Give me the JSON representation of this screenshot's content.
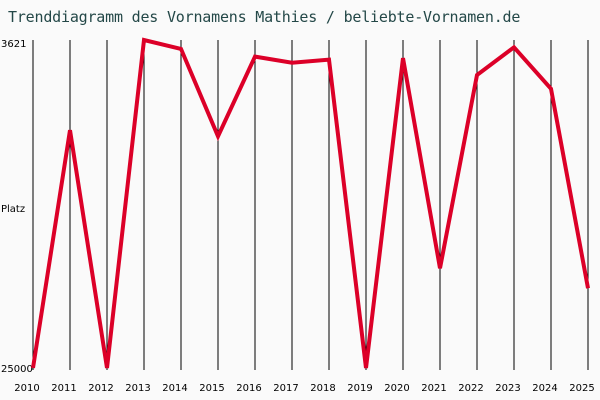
{
  "title": "Trenddiagramm des Vornamens Mathies / beliebte-Vornamen.de",
  "colors": {
    "background": "#fafafa",
    "line": "#dc0028",
    "grid": "#000000",
    "title": "#244848"
  },
  "chart_data": {
    "type": "line",
    "title": "Trenddiagramm des Vornamens Mathies / beliebte-Vornamen.de",
    "xlabel": "",
    "ylabel": "Platz",
    "y_inverted": true,
    "ylim": [
      3621,
      25000
    ],
    "y_tick_labels": [
      "3621",
      "Platz",
      "25000"
    ],
    "categories": [
      "2010",
      "2011",
      "2012",
      "2013",
      "2014",
      "2015",
      "2016",
      "2017",
      "2018",
      "2019",
      "2020",
      "2021",
      "2022",
      "2023",
      "2024",
      "2025"
    ],
    "series": [
      {
        "name": "Mathies",
        "values": [
          25000,
          9500,
          25000,
          3621,
          4200,
          9900,
          4700,
          5100,
          4900,
          25000,
          4800,
          18500,
          5900,
          4100,
          6800,
          19800
        ]
      }
    ],
    "grid": {
      "vertical": true,
      "horizontal": false
    },
    "legend": null
  }
}
